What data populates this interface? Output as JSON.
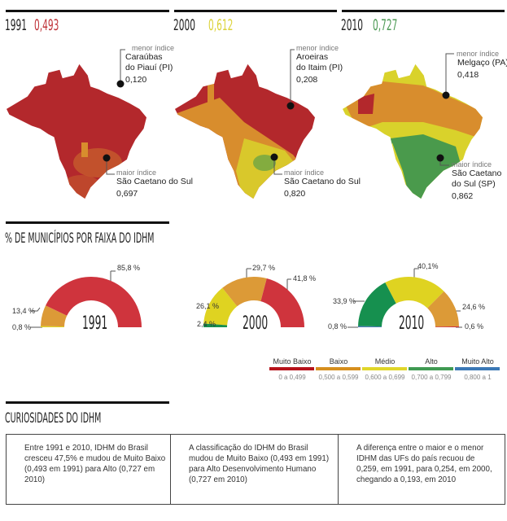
{
  "colors": {
    "muito_baixo": "#cf343d",
    "baixo": "#dc9a37",
    "medio": "#dfd321",
    "alto": "#16904f",
    "muito_alto": "#4a7ab5",
    "map_red": "#b3282c",
    "map_orange": "#d88d2d",
    "map_yellow": "#d9d22b",
    "map_green": "#4a9a4c"
  },
  "maps": [
    {
      "year": "1991",
      "idhm": "0,493",
      "idhm_color": "#c0343a",
      "menor": {
        "label": "menor índice",
        "line1": "Caraúbas",
        "line2": "do Piauí (PI)",
        "value": "0,120"
      },
      "maior": {
        "label": "maior índice",
        "line1": "São Caetano do Sul",
        "line2": "",
        "value": "0,697"
      }
    },
    {
      "year": "2000",
      "idhm": "0,612",
      "idhm_color": "#dcd33a",
      "menor": {
        "label": "menor índice",
        "line1": "Aroeiras",
        "line2": "do Itaim (PI)",
        "value": "0,208"
      },
      "maior": {
        "label": "maior índice",
        "line1": "São Caetano do Sul",
        "line2": "",
        "value": "0,820"
      }
    },
    {
      "year": "2010",
      "idhm": "0,727",
      "idhm_color": "#4d9a55",
      "menor": {
        "label": "menor índice",
        "line1": "Melgaço (PA)",
        "line2": "",
        "value": "0,418"
      },
      "maior": {
        "label": "maior índice",
        "line1": "São Caetano",
        "line2": "do Sul (SP)",
        "value": "0,862"
      }
    }
  ],
  "section_title": "% DE MUNICÍPIOS POR FAIXA DO IDHM",
  "chart_data": [
    {
      "type": "pie",
      "title": "1991",
      "series": [
        {
          "name": "Médio",
          "value": 0.8,
          "label": "0,8 %",
          "color": "#dfd321"
        },
        {
          "name": "Baixo",
          "value": 13.4,
          "label": "13,4 %",
          "color": "#dc9a37"
        },
        {
          "name": "Muito Baixo",
          "value": 85.8,
          "label": "85,8 %",
          "color": "#cf343d"
        }
      ]
    },
    {
      "type": "pie",
      "title": "2000",
      "series": [
        {
          "name": "Alto",
          "value": 2.4,
          "label": "2,4 %",
          "color": "#16904f"
        },
        {
          "name": "Médio",
          "value": 26.1,
          "label": "26,1 %",
          "color": "#dfd321"
        },
        {
          "name": "Baixo",
          "value": 29.7,
          "label": "29,7 %",
          "color": "#dc9a37"
        },
        {
          "name": "Muito Baixo",
          "value": 41.8,
          "label": "41,8 %",
          "color": "#cf343d"
        }
      ]
    },
    {
      "type": "pie",
      "title": "2010",
      "series": [
        {
          "name": "Muito Alto",
          "value": 0.8,
          "label": "0,8 %",
          "color": "#4a7ab5"
        },
        {
          "name": "Alto",
          "value": 33.9,
          "label": "33,9 %",
          "color": "#16904f"
        },
        {
          "name": "Médio",
          "value": 40.1,
          "label": "40,1%",
          "color": "#dfd321"
        },
        {
          "name": "Baixo",
          "value": 24.6,
          "label": "24,6 %",
          "color": "#dc9a37"
        },
        {
          "name": "Muito Baixo",
          "value": 0.6,
          "label": "0,6 %",
          "color": "#cf343d"
        }
      ]
    }
  ],
  "legend": [
    {
      "name": "Muito Baixo",
      "range": "0 a 0,499",
      "color": "#b5121b"
    },
    {
      "name": "Baixo",
      "range": "0,500 a 0,599",
      "color": "#d68f1e"
    },
    {
      "name": "Médio",
      "range": "0,600 a 0,699",
      "color": "#e0d62a"
    },
    {
      "name": "Alto",
      "range": "0,700 a 0,799",
      "color": "#3f9a52"
    },
    {
      "name": "Muito Alto",
      "range": "0,800 a 1",
      "color": "#3b78b5"
    }
  ],
  "curiosities": {
    "title": "CURIOSIDADES DO IDHM",
    "items": [
      "Entre 1991 e 2010, IDHM do Brasil cresceu 47,5% e mudou de Muito Baixo (0,493 em 1991) para Alto (0,727 em 2010)",
      "A classificação do IDHM do Brasil mudou de Muito Baixo (0,493 em 1991) para Alto Desenvolvimento Humano (0,727 em 2010)",
      "A diferença entre o maior e o menor IDHM das UFs do país recuou de 0,259, em 1991, para 0,254, em 2000, chegando a 0,193, em 2010"
    ]
  }
}
